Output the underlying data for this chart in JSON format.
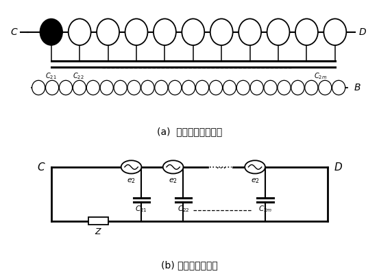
{
  "title_a": "(a)  变压器内部结构图",
  "title_b": "(b) 交流等效电路图",
  "bg_color": "#ffffff",
  "line_color": "#000000",
  "fig_width": 5.53,
  "fig_height": 4.03,
  "dpi": 100
}
